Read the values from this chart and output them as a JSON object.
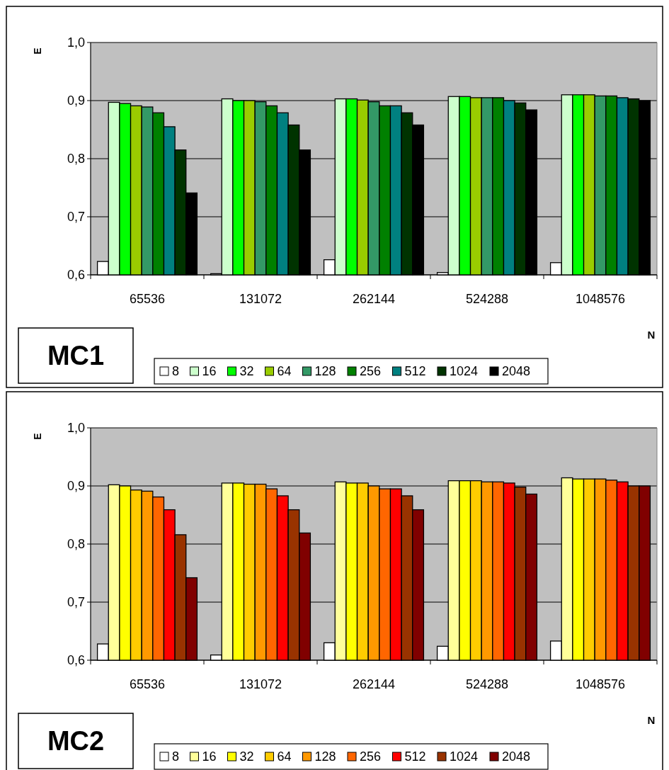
{
  "chart_data": [
    {
      "type": "bar",
      "title": "MC1",
      "xlabel": "N",
      "ylabel": "E",
      "categories": [
        "65536",
        "131072",
        "262144",
        "524288",
        "1048576"
      ],
      "ylim": [
        0.6,
        1.0
      ],
      "yticks": [
        {
          "value": 0.6,
          "label": "0,6"
        },
        {
          "value": 0.7,
          "label": "0,7"
        },
        {
          "value": 0.8,
          "label": "0,8"
        },
        {
          "value": 0.9,
          "label": "0,9"
        },
        {
          "value": 1.0,
          "label": "1,0"
        }
      ],
      "grid": "y",
      "legend": "bottom",
      "series": [
        {
          "name": "8",
          "color": "#ffffff",
          "values": [
            0.623,
            0.602,
            0.626,
            0.604,
            0.621
          ]
        },
        {
          "name": "16",
          "color": "#ccffcc",
          "values": [
            0.897,
            0.903,
            0.903,
            0.907,
            0.91
          ]
        },
        {
          "name": "32",
          "color": "#00ff00",
          "values": [
            0.895,
            0.9,
            0.903,
            0.907,
            0.91
          ]
        },
        {
          "name": "64",
          "color": "#99cc00",
          "values": [
            0.891,
            0.9,
            0.901,
            0.905,
            0.91
          ]
        },
        {
          "name": "128",
          "color": "#339966",
          "values": [
            0.889,
            0.898,
            0.898,
            0.905,
            0.908
          ]
        },
        {
          "name": "256",
          "color": "#008000",
          "values": [
            0.879,
            0.891,
            0.891,
            0.905,
            0.908
          ]
        },
        {
          "name": "512",
          "color": "#008080",
          "values": [
            0.855,
            0.879,
            0.891,
            0.9,
            0.905
          ]
        },
        {
          "name": "1024",
          "color": "#003300",
          "values": [
            0.815,
            0.858,
            0.879,
            0.896,
            0.903
          ]
        },
        {
          "name": "2048",
          "color": "#000000",
          "values": [
            0.741,
            0.815,
            0.858,
            0.884,
            0.9
          ]
        }
      ]
    },
    {
      "type": "bar",
      "title": "MC2",
      "xlabel": "N",
      "ylabel": "E",
      "categories": [
        "65536",
        "131072",
        "262144",
        "524288",
        "1048576"
      ],
      "ylim": [
        0.6,
        1.0
      ],
      "yticks": [
        {
          "value": 0.6,
          "label": "0,6"
        },
        {
          "value": 0.7,
          "label": "0,7"
        },
        {
          "value": 0.8,
          "label": "0,8"
        },
        {
          "value": 0.9,
          "label": "0,9"
        },
        {
          "value": 1.0,
          "label": "1,0"
        }
      ],
      "grid": "y",
      "legend": "bottom",
      "series": [
        {
          "name": "8",
          "color": "#ffffff",
          "values": [
            0.628,
            0.609,
            0.63,
            0.624,
            0.633
          ]
        },
        {
          "name": "16",
          "color": "#ffff99",
          "values": [
            0.902,
            0.905,
            0.907,
            0.909,
            0.914
          ]
        },
        {
          "name": "32",
          "color": "#ffff00",
          "values": [
            0.9,
            0.905,
            0.905,
            0.909,
            0.912
          ]
        },
        {
          "name": "64",
          "color": "#ffcc00",
          "values": [
            0.893,
            0.903,
            0.905,
            0.909,
            0.912
          ]
        },
        {
          "name": "128",
          "color": "#ff9900",
          "values": [
            0.891,
            0.903,
            0.9,
            0.907,
            0.912
          ]
        },
        {
          "name": "256",
          "color": "#ff6600",
          "values": [
            0.881,
            0.895,
            0.895,
            0.907,
            0.91
          ]
        },
        {
          "name": "512",
          "color": "#ff0000",
          "values": [
            0.859,
            0.883,
            0.895,
            0.905,
            0.907
          ]
        },
        {
          "name": "1024",
          "color": "#993300",
          "values": [
            0.816,
            0.859,
            0.883,
            0.898,
            0.9
          ]
        },
        {
          "name": "2048",
          "color": "#800000",
          "values": [
            0.742,
            0.819,
            0.859,
            0.886,
            0.9
          ]
        }
      ]
    }
  ]
}
